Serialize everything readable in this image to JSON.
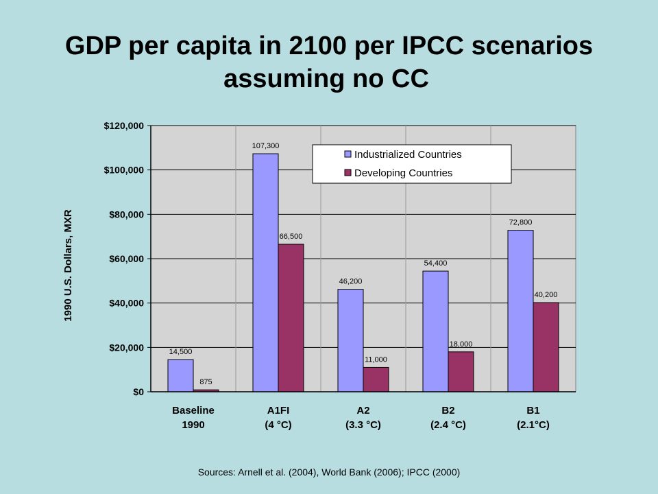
{
  "slide": {
    "title_line1": "GDP per capita in 2100 per IPCC scenarios",
    "title_line2": "assuming no CC",
    "source": "Sources: Arnell et al. (2004), World Bank (2006); IPCC (2000)"
  },
  "chart_data": {
    "type": "bar",
    "categories": [
      [
        "Baseline",
        "1990"
      ],
      [
        "A1FI",
        "(4 °C)"
      ],
      [
        "A2",
        "(3.3 °C)"
      ],
      [
        "B2",
        "(2.4 °C)"
      ],
      [
        "B1",
        "(2.1°C)"
      ]
    ],
    "series": [
      {
        "name": "Industrialized Countries",
        "values": [
          14500,
          107300,
          46200,
          54400,
          72800
        ],
        "labels": [
          "14,500",
          "107,300",
          "46,200",
          "54,400",
          "72,800"
        ],
        "color": "#9999ff"
      },
      {
        "name": "Developing Countries",
        "values": [
          875,
          66500,
          11000,
          18000,
          40200
        ],
        "labels": [
          "875",
          "66,500",
          "11,000",
          "18,000",
          "40,200"
        ],
        "color": "#993366"
      }
    ],
    "ylabel": "1990 U.S. Dollars, MXR",
    "ylim": [
      0,
      120000
    ],
    "yticks": [
      0,
      20000,
      40000,
      60000,
      80000,
      100000,
      120000
    ],
    "ytick_labels": [
      "$0",
      "$20,000",
      "$40,000",
      "$60,000",
      "$80,000",
      "$100,000",
      "$120,000"
    ],
    "grid": true,
    "legend_position": "top-right",
    "plot_background": "#d4d4d4"
  }
}
